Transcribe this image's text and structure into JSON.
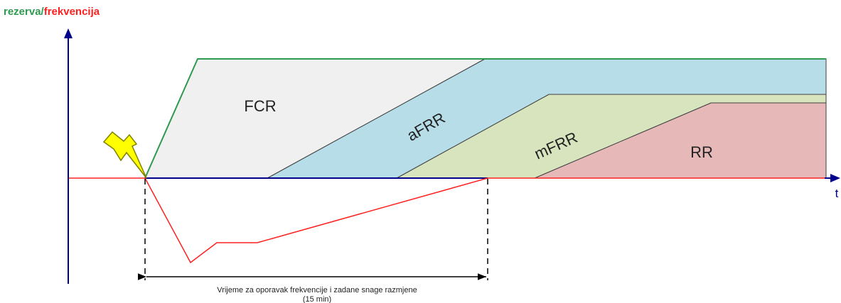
{
  "title": {
    "part1": "rezerva",
    "separator": "/",
    "part2": "frekvencija",
    "color_part1": "#2e9a4f",
    "color_part2": "#ff2020"
  },
  "axis": {
    "x_label": "t"
  },
  "regions": [
    {
      "label": "FCR",
      "fill": "#f0f0f0"
    },
    {
      "label": "aFRR",
      "fill": "#b7dde8"
    },
    {
      "label": "mFRR",
      "fill": "#d7e4bd"
    },
    {
      "label": "RR",
      "fill": "#e6b9b8"
    }
  ],
  "colors": {
    "axis": "#00008b",
    "frequency": "#ff2020",
    "reserve_edge": "#2e9a4f",
    "lightning_fill": "#ffff00",
    "lightning_stroke": "#808000"
  },
  "icons": {
    "disturbance": "lightning-icon"
  },
  "annotation": {
    "line1": "Vrijeme za oporavak frekvencije i zadane snage razmjene",
    "line2": "(15 min)"
  }
}
